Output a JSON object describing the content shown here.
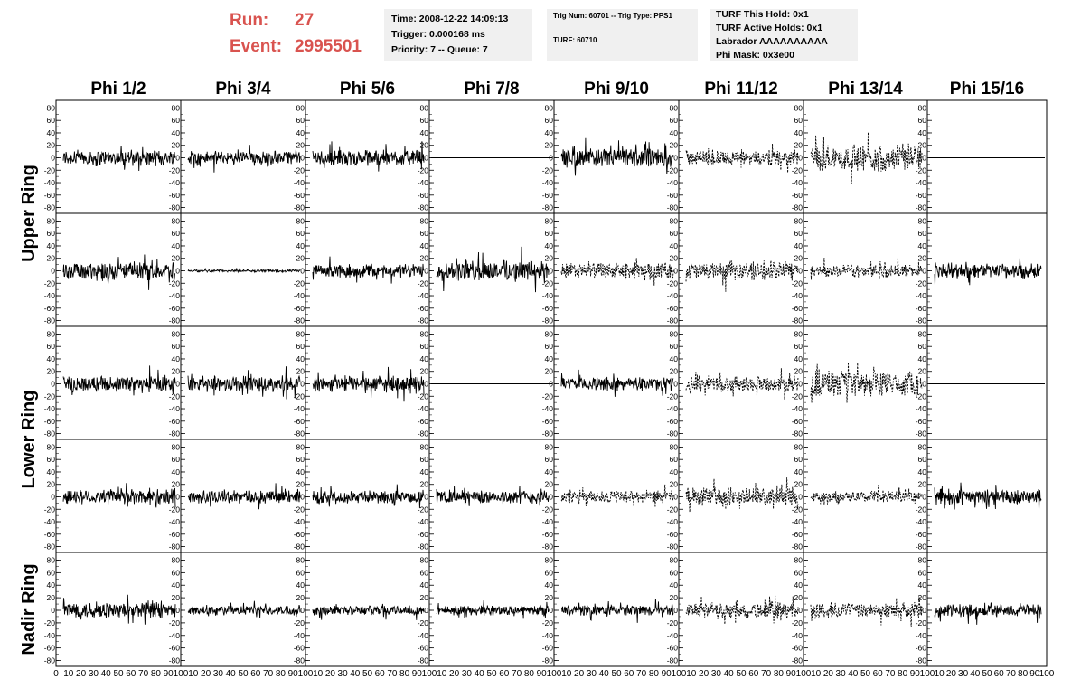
{
  "header": {
    "run_label": "Run:",
    "run_value": "27",
    "event_label": "Event:",
    "event_value": "2995501",
    "run_color": "#d9534f",
    "box_color": "#f0f0f0",
    "time_box": {
      "line1": "Time: 2008-12-22 14:09:13",
      "line2": "Trigger: 0.000168 ms",
      "line3": "Priority: 7 -- Queue: 7"
    },
    "trig_box": {
      "line1": "Trig Num: 60701 -- Trig Type: PPS1",
      "line2": "TURF: 60710"
    },
    "turf_box": {
      "line1": "TURF This Hold: 0x1",
      "line2": "TURF Active Holds: 0x1",
      "line3": "Labrador AAAAAAAAAA",
      "line4": "Phi Mask: 0x3e00"
    }
  },
  "chart_data": {
    "type": "line",
    "columns": [
      "Phi 1/2",
      "Phi 3/4",
      "Phi 5/6",
      "Phi 7/8",
      "Phi 9/10",
      "Phi 11/12",
      "Phi 13/14",
      "Phi 15/16"
    ],
    "row_labels": [
      "Upper Ring",
      "Lower Ring",
      "Nadir Ring"
    ],
    "ylim": [
      -85,
      85
    ],
    "xlim": [
      0,
      100
    ],
    "y_ticks": [
      -80,
      -60,
      -40,
      -20,
      0,
      20,
      40,
      60,
      80
    ],
    "x_ticks": [
      0,
      10,
      20,
      30,
      40,
      50,
      60,
      70,
      80,
      90,
      100
    ],
    "panel_rows": 5,
    "line_styles": {
      "solid": "solid",
      "dashed": "dashed",
      "flat": "flat"
    },
    "panels": [
      [
        "solid",
        "solid",
        "solid",
        "flat",
        "solid",
        "dashed",
        "dashed",
        "flat"
      ],
      [
        "solid",
        "solid",
        "solid",
        "solid",
        "dashed",
        "dashed",
        "dashed",
        "solid"
      ],
      [
        "solid",
        "solid",
        "solid",
        "flat",
        "solid",
        "dashed",
        "dashed",
        "flat"
      ],
      [
        "solid",
        "solid",
        "solid",
        "solid",
        "dashed",
        "dashed",
        "dashed",
        "solid"
      ],
      [
        "solid",
        "solid",
        "solid",
        "solid",
        "solid",
        "dashed",
        "dashed",
        "solid"
      ]
    ],
    "amplitudes": [
      [
        12,
        10,
        12,
        0,
        14,
        12,
        20,
        0
      ],
      [
        14,
        2,
        10,
        16,
        12,
        14,
        10,
        12
      ],
      [
        12,
        12,
        12,
        0,
        10,
        12,
        20,
        0
      ],
      [
        12,
        10,
        10,
        10,
        10,
        14,
        8,
        12
      ],
      [
        12,
        7,
        7,
        7,
        8,
        12,
        12,
        10
      ]
    ]
  }
}
